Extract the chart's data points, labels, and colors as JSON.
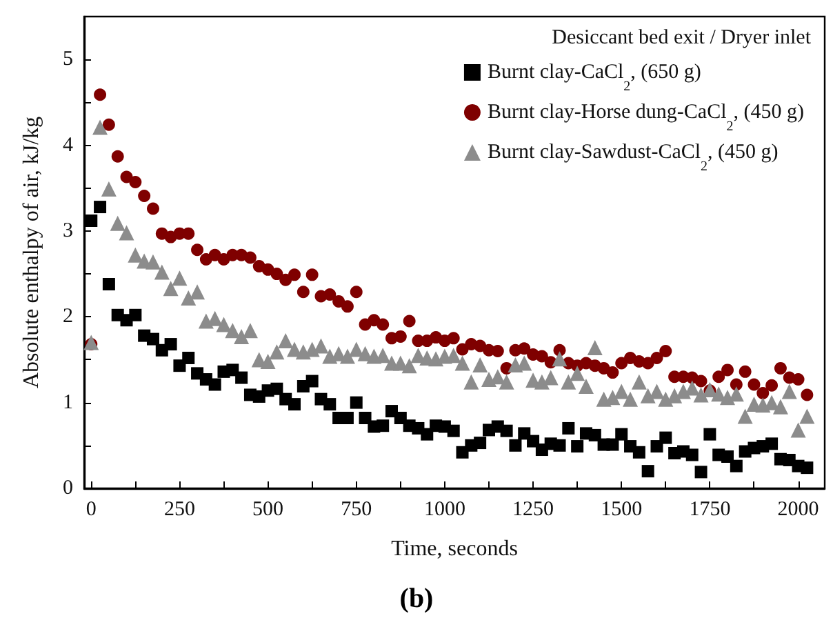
{
  "chart_data": {
    "type": "scatter",
    "xlabel": "Time, seconds",
    "ylabel": "Absolute enthalpy of air, kJ/kg",
    "legend_title": "Desiccant bed exit / Dryer inlet",
    "annotations": [
      "(b)"
    ],
    "legend": "top right",
    "grid": false,
    "xlim": [
      -20,
      2075
    ],
    "ylim": [
      0,
      5.5
    ],
    "xticks": [
      0,
      {
        "value": 125,
        "label": null
      },
      250,
      {
        "value": 375,
        "label": null
      },
      500,
      {
        "value": 625,
        "label": null
      },
      750,
      {
        "value": 875,
        "label": null
      },
      1000,
      {
        "value": 1125,
        "label": null
      },
      1250,
      {
        "value": 1375,
        "label": null
      },
      1500,
      {
        "value": 1625,
        "label": null
      },
      1750,
      {
        "value": 1875,
        "label": null
      },
      2000
    ],
    "yticks": [
      0,
      {
        "value": 0.5,
        "label": null
      },
      1,
      {
        "value": 1.5,
        "label": null
      },
      2,
      {
        "value": 2.5,
        "label": null
      },
      3,
      {
        "value": 3.5,
        "label": null
      },
      4,
      {
        "value": 4.5,
        "label": null
      },
      5
    ],
    "x": [
      0,
      25,
      50,
      75,
      100,
      125,
      150,
      175,
      200,
      225,
      250,
      275,
      300,
      325,
      350,
      375,
      400,
      425,
      450,
      475,
      500,
      525,
      550,
      575,
      600,
      625,
      650,
      675,
      700,
      725,
      750,
      775,
      800,
      825,
      850,
      875,
      900,
      925,
      950,
      975,
      1000,
      1025,
      1050,
      1075,
      1100,
      1125,
      1150,
      1175,
      1200,
      1225,
      1250,
      1275,
      1300,
      1325,
      1350,
      1375,
      1400,
      1425,
      1450,
      1475,
      1500,
      1525,
      1550,
      1575,
      1600,
      1625,
      1650,
      1675,
      1700,
      1725,
      1750,
      1775,
      1800,
      1825,
      1850,
      1875,
      1900,
      1925,
      1950,
      1975,
      2000,
      2025
    ],
    "series": [
      {
        "name": "Burnt clay-CaCl$_{2}$, (650 g)",
        "color": "#000000",
        "marker": "square",
        "values": [
          3.12,
          3.28,
          2.38,
          2.02,
          1.96,
          2.02,
          1.78,
          1.74,
          1.61,
          1.68,
          1.43,
          1.52,
          1.34,
          1.27,
          1.21,
          1.36,
          1.38,
          1.29,
          1.09,
          1.07,
          1.14,
          1.16,
          1.04,
          0.98,
          1.19,
          1.25,
          1.04,
          0.98,
          0.82,
          0.82,
          1.0,
          0.82,
          0.72,
          0.73,
          0.9,
          0.82,
          0.73,
          0.7,
          0.63,
          0.73,
          0.72,
          0.67,
          0.42,
          0.5,
          0.53,
          0.68,
          0.72,
          0.67,
          0.5,
          0.64,
          0.55,
          0.45,
          0.52,
          0.5,
          0.7,
          0.49,
          0.64,
          0.62,
          0.51,
          0.51,
          0.63,
          0.49,
          0.42,
          0.2,
          0.49,
          0.59,
          0.41,
          0.43,
          0.39,
          0.19,
          0.63,
          0.39,
          0.37,
          0.26,
          0.43,
          0.47,
          0.49,
          0.52,
          0.34,
          0.33,
          0.26,
          0.24
        ]
      },
      {
        "name": "Burnt clay-Horse dung-CaCl$_{2}$, (450 g)",
        "color": "#7f0000",
        "marker": "circle",
        "values": [
          1.68,
          4.59,
          4.24,
          3.87,
          3.63,
          3.57,
          3.41,
          3.26,
          2.97,
          2.93,
          2.97,
          2.97,
          2.78,
          2.67,
          2.72,
          2.67,
          2.72,
          2.72,
          2.69,
          2.59,
          2.55,
          2.5,
          2.43,
          2.49,
          2.29,
          2.49,
          2.24,
          2.26,
          2.18,
          2.12,
          2.29,
          1.91,
          1.96,
          1.91,
          1.75,
          1.77,
          1.95,
          1.72,
          1.72,
          1.76,
          1.72,
          1.75,
          1.62,
          1.68,
          1.66,
          1.61,
          1.6,
          1.4,
          1.61,
          1.63,
          1.56,
          1.54,
          1.47,
          1.61,
          1.46,
          1.43,
          1.46,
          1.43,
          1.4,
          1.35,
          1.46,
          1.52,
          1.48,
          1.46,
          1.52,
          1.6,
          1.3,
          1.3,
          1.29,
          1.25,
          1.14,
          1.3,
          1.38,
          1.21,
          1.36,
          1.21,
          1.11,
          1.2,
          1.4,
          1.29,
          1.27,
          1.09
        ]
      },
      {
        "name": "Burnt clay-Sawdust-CaCl$_{2}$, (450 g)",
        "color": "#8c8c8c",
        "marker": "triangle",
        "values": [
          1.7,
          4.21,
          3.49,
          3.09,
          2.98,
          2.72,
          2.65,
          2.64,
          2.52,
          2.33,
          2.45,
          2.22,
          2.29,
          1.95,
          1.98,
          1.91,
          1.84,
          1.77,
          1.84,
          1.5,
          1.48,
          1.59,
          1.72,
          1.62,
          1.59,
          1.62,
          1.66,
          1.54,
          1.57,
          1.54,
          1.62,
          1.57,
          1.54,
          1.55,
          1.46,
          1.46,
          1.43,
          1.55,
          1.52,
          1.51,
          1.54,
          1.55,
          1.46,
          1.24,
          1.44,
          1.27,
          1.3,
          1.24,
          1.44,
          1.46,
          1.26,
          1.24,
          1.29,
          1.51,
          1.24,
          1.34,
          1.19,
          1.64,
          1.04,
          1.06,
          1.13,
          1.04,
          1.24,
          1.08,
          1.13,
          1.04,
          1.08,
          1.13,
          1.17,
          1.09,
          1.15,
          1.1,
          1.06,
          1.1,
          0.84,
          0.98,
          0.97,
          1.0,
          0.95,
          1.13,
          0.68,
          0.84
        ]
      }
    ]
  }
}
